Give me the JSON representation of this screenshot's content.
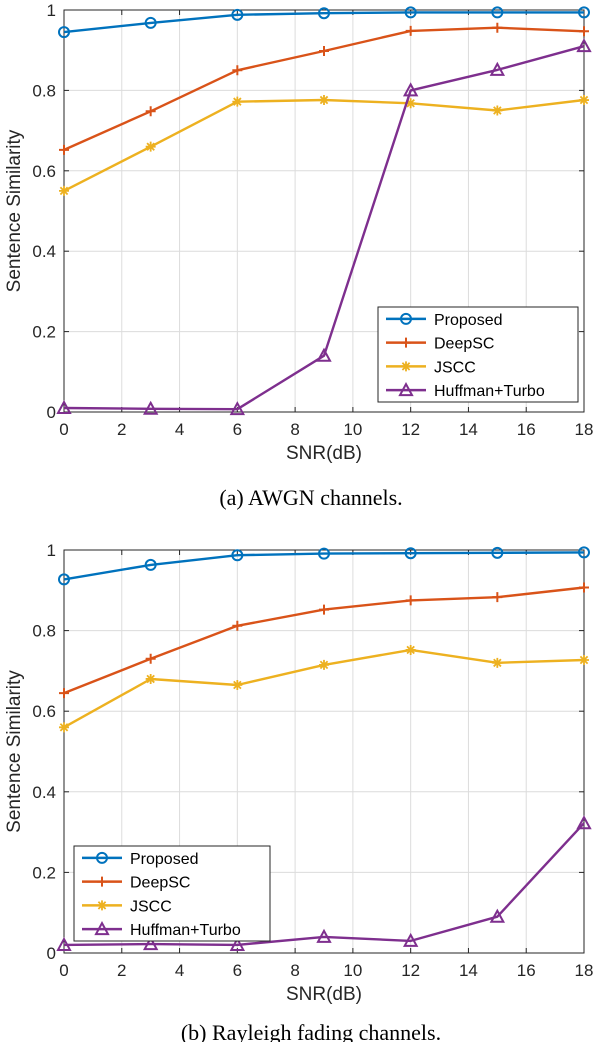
{
  "chart_data": [
    {
      "type": "line",
      "caption": "(a)  AWGN channels.",
      "xlabel": "SNR(dB)",
      "ylabel": "Sentence Similarity",
      "xlim": [
        0,
        18
      ],
      "ylim": [
        0,
        1
      ],
      "xticks": [
        0,
        2,
        4,
        6,
        8,
        10,
        12,
        14,
        16,
        18
      ],
      "yticks": [
        0,
        0.2,
        0.4,
        0.6,
        0.8,
        1
      ],
      "ytick_labels": [
        "0",
        "0.2",
        "0.4",
        "0.6",
        "0.8",
        "1"
      ],
      "grid": true,
      "legend_position": "bottom-right",
      "x": [
        0,
        3,
        6,
        9,
        12,
        15,
        18
      ],
      "series": [
        {
          "name": "Proposed",
          "color": "#0072BD",
          "marker": "circle",
          "values": [
            0.945,
            0.968,
            0.988,
            0.992,
            0.994,
            0.994,
            0.994
          ]
        },
        {
          "name": "DeepSC",
          "color": "#D95319",
          "marker": "plus",
          "values": [
            0.652,
            0.748,
            0.85,
            0.898,
            0.948,
            0.956,
            0.947
          ]
        },
        {
          "name": "JSCC",
          "color": "#EDB120",
          "marker": "asterisk",
          "values": [
            0.55,
            0.66,
            0.772,
            0.776,
            0.768,
            0.75,
            0.776
          ]
        },
        {
          "name": "Huffman+Turbo",
          "color": "#7E2F8E",
          "marker": "triangle",
          "values": [
            0.01,
            0.008,
            0.007,
            0.14,
            0.8,
            0.851,
            0.91
          ]
        }
      ]
    },
    {
      "type": "line",
      "caption": "(b)  Rayleigh fading channels.",
      "xlabel": "SNR(dB)",
      "ylabel": "Sentence Similarity",
      "xlim": [
        0,
        18
      ],
      "ylim": [
        0,
        1
      ],
      "xticks": [
        0,
        2,
        4,
        6,
        8,
        10,
        12,
        14,
        16,
        18
      ],
      "yticks": [
        0,
        0.2,
        0.4,
        0.6,
        0.8,
        1
      ],
      "ytick_labels": [
        "0",
        "0.2",
        "0.4",
        "0.6",
        "0.8",
        "1"
      ],
      "grid": true,
      "legend_position": "bottom-left",
      "x": [
        0,
        3,
        6,
        9,
        12,
        15,
        18
      ],
      "series": [
        {
          "name": "Proposed",
          "color": "#0072BD",
          "marker": "circle",
          "values": [
            0.927,
            0.963,
            0.987,
            0.991,
            0.992,
            0.993,
            0.994
          ]
        },
        {
          "name": "DeepSC",
          "color": "#D95319",
          "marker": "plus",
          "values": [
            0.645,
            0.73,
            0.812,
            0.852,
            0.875,
            0.883,
            0.907
          ]
        },
        {
          "name": "JSCC",
          "color": "#EDB120",
          "marker": "asterisk",
          "values": [
            0.56,
            0.68,
            0.665,
            0.715,
            0.752,
            0.72,
            0.727
          ]
        },
        {
          "name": "Huffman+Turbo",
          "color": "#7E2F8E",
          "marker": "triangle",
          "values": [
            0.02,
            0.022,
            0.02,
            0.04,
            0.03,
            0.09,
            0.322
          ]
        }
      ]
    }
  ]
}
